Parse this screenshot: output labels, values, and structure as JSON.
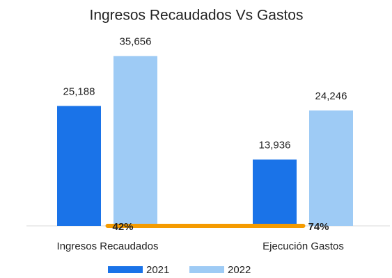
{
  "chart_data": {
    "type": "bar",
    "title": "Ingresos Recaudados Vs Gastos",
    "categories": [
      "Ingresos Recaudados",
      "Ejecución Gastos"
    ],
    "series": [
      {
        "name": "2021",
        "color": "#1a73e8",
        "values": [
          25188,
          13936
        ],
        "value_labels": [
          "25,188",
          "13,936"
        ]
      },
      {
        "name": "2022",
        "color": "#9ecbf5",
        "values": [
          35656,
          24246
        ],
        "value_labels": [
          "35,656",
          "24,246"
        ]
      },
      {
        "type": "line",
        "color": "#f59b00",
        "values": [
          0.42,
          0.74
        ],
        "value_labels": [
          "42%",
          "74%"
        ]
      }
    ],
    "ylim": [
      0,
      40000
    ],
    "legend": "bottom"
  }
}
